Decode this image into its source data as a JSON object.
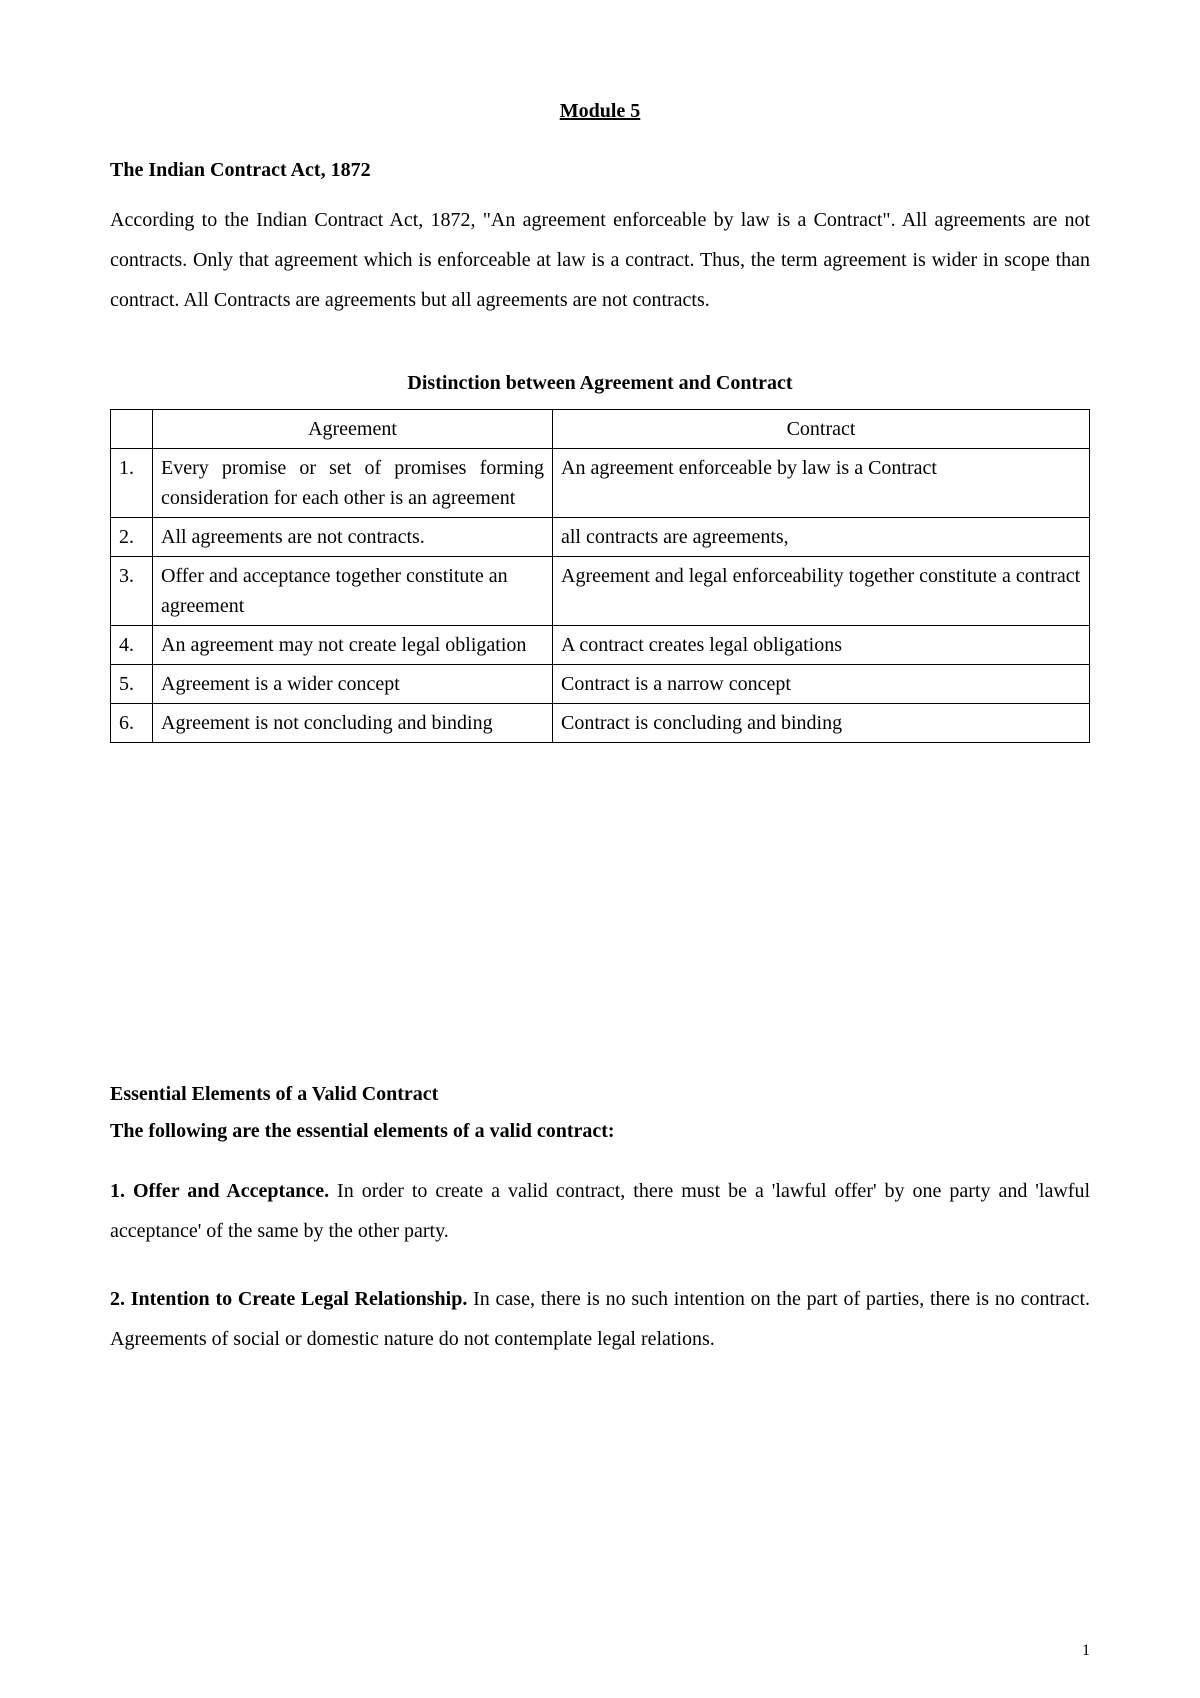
{
  "module_title": "Module 5",
  "section_heading": "The Indian Contract Act, 1872",
  "intro_text": "According to the Indian Contract Act, 1872, \"An agreement enforceable by law is a Contract\". All agreements are not contracts. Only that agreement which is enforceable at law is a contract. Thus, the term agreement is wider in scope than contract. All Contracts are agreements but all agreements are not contracts.",
  "table_title": "Distinction between Agreement and Contract",
  "table": {
    "headers": {
      "blank": "",
      "agreement": "Agreement",
      "contract": "Contract"
    },
    "rows": [
      {
        "num": "1.",
        "agreement": "Every promise or set of promises forming consideration for each other is an agreement",
        "contract": "An agreement enforceable by law is a Contract",
        "agreement_justify": true
      },
      {
        "num": "2.",
        "agreement": "All agreements are not contracts.",
        "contract": "all contracts are agreements,"
      },
      {
        "num": "3.",
        "agreement": "Offer and acceptance together constitute an agreement",
        "contract": "Agreement and legal enforceability together constitute a contract"
      },
      {
        "num": "4.",
        "agreement": "An agreement may not create legal obligation",
        "contract": "A contract creates legal obligations",
        "agreement_justify": true
      },
      {
        "num": "5.",
        "agreement": "Agreement is a wider concept",
        "contract": "Contract is a narrow concept"
      },
      {
        "num": "6.",
        "agreement": "Agreement is not concluding and binding",
        "contract": "Contract is concluding and binding",
        "agreement_justify": true
      }
    ]
  },
  "essential_heading": "Essential Elements of a Valid Contract",
  "essential_subheading": "The following are the essential elements of a valid contract:",
  "elements": [
    {
      "label": "1. Offer and Acceptance.",
      "text": "  In order to create a valid contract, there must be a 'lawful offer' by one party and 'lawful acceptance' of the same by the other party."
    },
    {
      "label": "2. Intention to Create Legal Relationship.",
      "text": "  In case, there is no such intention on the part of parties, there is no contract. Agreements of social or domestic nature do not contemplate legal relations."
    }
  ],
  "page_number": "1"
}
